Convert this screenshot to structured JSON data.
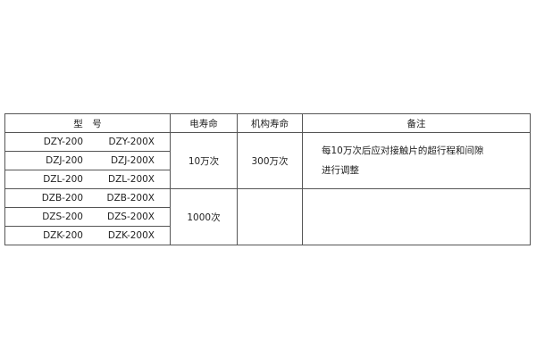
{
  "table": {
    "headers": [
      "型　号",
      "电寿命",
      "机构寿命",
      "备注"
    ],
    "groups": [
      {
        "models": [
          [
            "DZY-200",
            "DZY-200X"
          ],
          [
            "DZJ-200",
            "DZJ-200X"
          ],
          [
            "DZL-200",
            "DZL-200X"
          ]
        ],
        "electrical_life": "10万次",
        "mechanical_life": "300万次",
        "note_line1": "每10万次后应对接触片的超行程和间隙",
        "note_line2": "进行调整"
      },
      {
        "models": [
          [
            "DZB-200",
            "DZB-200X"
          ],
          [
            "DZS-200",
            "DZS-200X"
          ],
          [
            "DZK-200",
            "DZK-200X"
          ]
        ],
        "electrical_life": "1000次",
        "mechanical_life": "",
        "note_line1": "",
        "note_line2": ""
      }
    ]
  }
}
